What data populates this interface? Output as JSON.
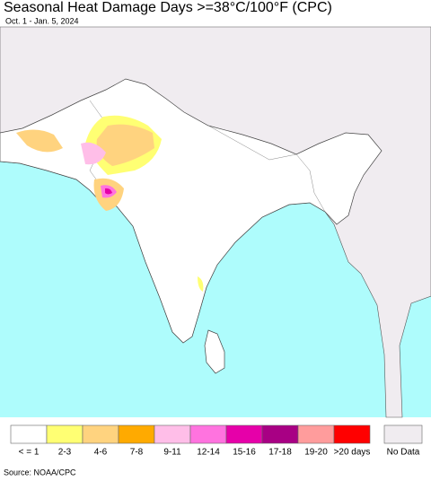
{
  "title": "Seasonal Heat Damage Days >=38°C/100°F (CPC)",
  "subtitle": "Oct. 1 - Jan. 5, 2024",
  "legend": [
    {
      "label": "< = 1",
      "color": "#ffffff"
    },
    {
      "label": "2-3",
      "color": "#ffff73"
    },
    {
      "label": "4-6",
      "color": "#ffd37f"
    },
    {
      "label": "7-8",
      "color": "#ffaa00"
    },
    {
      "label": "9-11",
      "color": "#ffbee8"
    },
    {
      "label": "12-14",
      "color": "#ff73df"
    },
    {
      "label": "15-16",
      "color": "#e600a9"
    },
    {
      "label": "17-18",
      "color": "#a80084"
    },
    {
      "label": "19-20",
      "color": "#ff9c9c"
    },
    {
      "label": ">20 days",
      "color": "#ff0000"
    }
  ],
  "no_data": {
    "label": "No Data",
    "color": "#f0ecf0"
  },
  "source": "Source: NOAA/CPC"
}
